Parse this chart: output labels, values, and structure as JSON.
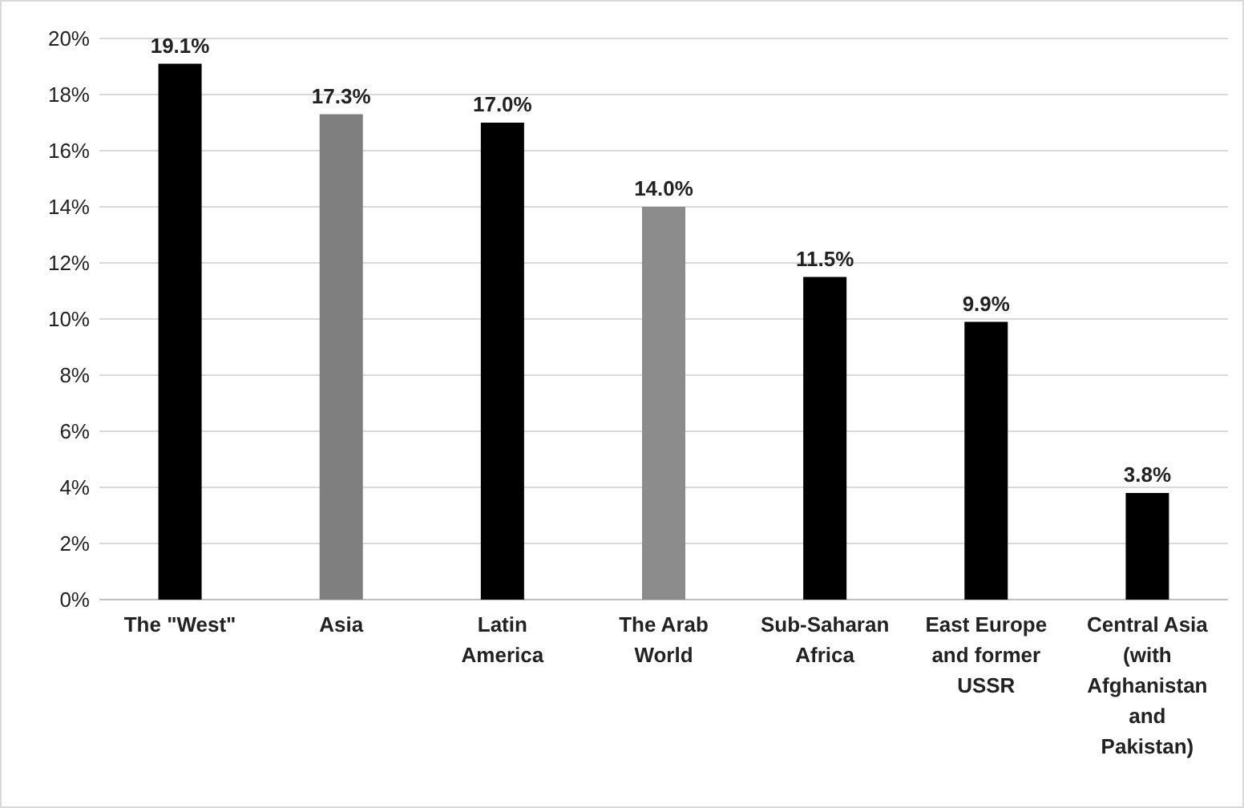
{
  "chart_data": {
    "type": "bar",
    "categories": [
      "The \"West\"",
      "Asia",
      "Latin America",
      "The Arab World",
      "Sub-Saharan Africa",
      "East Europe and former USSR",
      "Central Asia (with Afghanistan and Pakistan)"
    ],
    "values": [
      19.1,
      17.3,
      17.0,
      14.0,
      11.5,
      9.9,
      3.8
    ],
    "colors": [
      "#000000",
      "#7f7f7f",
      "#000000",
      "#8c8c8c",
      "#000000",
      "#000000",
      "#000000"
    ],
    "value_labels": [
      "19.1%",
      "17.3%",
      "17.0%",
      "14.0%",
      "11.5%",
      "9.9%",
      "3.8%"
    ],
    "ylim": [
      0,
      20
    ],
    "yticks": [
      {
        "value": 0,
        "label": "0%"
      },
      {
        "value": 2,
        "label": "2%"
      },
      {
        "value": 4,
        "label": "4%"
      },
      {
        "value": 6,
        "label": "6%"
      },
      {
        "value": 8,
        "label": "8%"
      },
      {
        "value": 10,
        "label": "10%"
      },
      {
        "value": 12,
        "label": "12%"
      },
      {
        "value": 14,
        "label": "14%"
      },
      {
        "value": 16,
        "label": "16%"
      },
      {
        "value": 18,
        "label": "18%"
      },
      {
        "value": 20,
        "label": "20%"
      }
    ],
    "grid": "y"
  }
}
